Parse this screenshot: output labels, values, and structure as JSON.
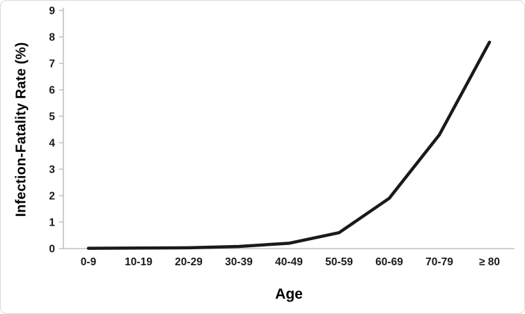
{
  "chart_data": {
    "type": "line",
    "title": "",
    "xlabel": "Age",
    "ylabel": "Infection-Fatality Rate (%)",
    "categories": [
      "0-9",
      "10-19",
      "20-29",
      "30-39",
      "40-49",
      "50-59",
      "60-69",
      "70-79",
      "≥ 80"
    ],
    "values": [
      0.01,
      0.02,
      0.03,
      0.08,
      0.2,
      0.6,
      1.9,
      4.3,
      7.8
    ],
    "ylim": [
      0,
      9
    ],
    "yticks": [
      0,
      1,
      2,
      3,
      4,
      5,
      6,
      7,
      8,
      9
    ],
    "grid": false,
    "legend": "none",
    "line_color": "#1a1a1a",
    "axis_color": "#bfbfbf",
    "tick_label_color": "#1a1a1a"
  }
}
